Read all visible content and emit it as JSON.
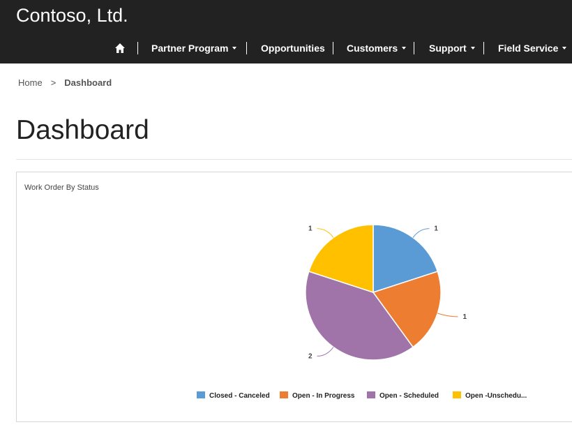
{
  "header": {
    "brand": "Contoso, Ltd.",
    "nav": {
      "home_icon": "home-icon",
      "items": [
        {
          "label": "Partner Program",
          "dropdown": true
        },
        {
          "label": "Opportunities",
          "dropdown": false
        },
        {
          "label": "Customers",
          "dropdown": true
        },
        {
          "label": "Support",
          "dropdown": true
        },
        {
          "label": "Field Service",
          "dropdown": true
        }
      ]
    }
  },
  "breadcrumb": {
    "home": "Home",
    "separator": ">",
    "current": "Dashboard"
  },
  "page": {
    "title": "Dashboard"
  },
  "panel": {
    "title": "Work Order By Status"
  },
  "chart_data": {
    "type": "pie",
    "title": "Work Order By Status",
    "categories": [
      "Closed - Canceled",
      "Open - In Progress",
      "Open - Scheduled",
      "Open -Unschedu..."
    ],
    "values": [
      1,
      1,
      2,
      1
    ],
    "colors": [
      "#5b9bd5",
      "#ed7d31",
      "#a074a8",
      "#ffc000"
    ],
    "legend": "bottom",
    "data_labels": true
  }
}
